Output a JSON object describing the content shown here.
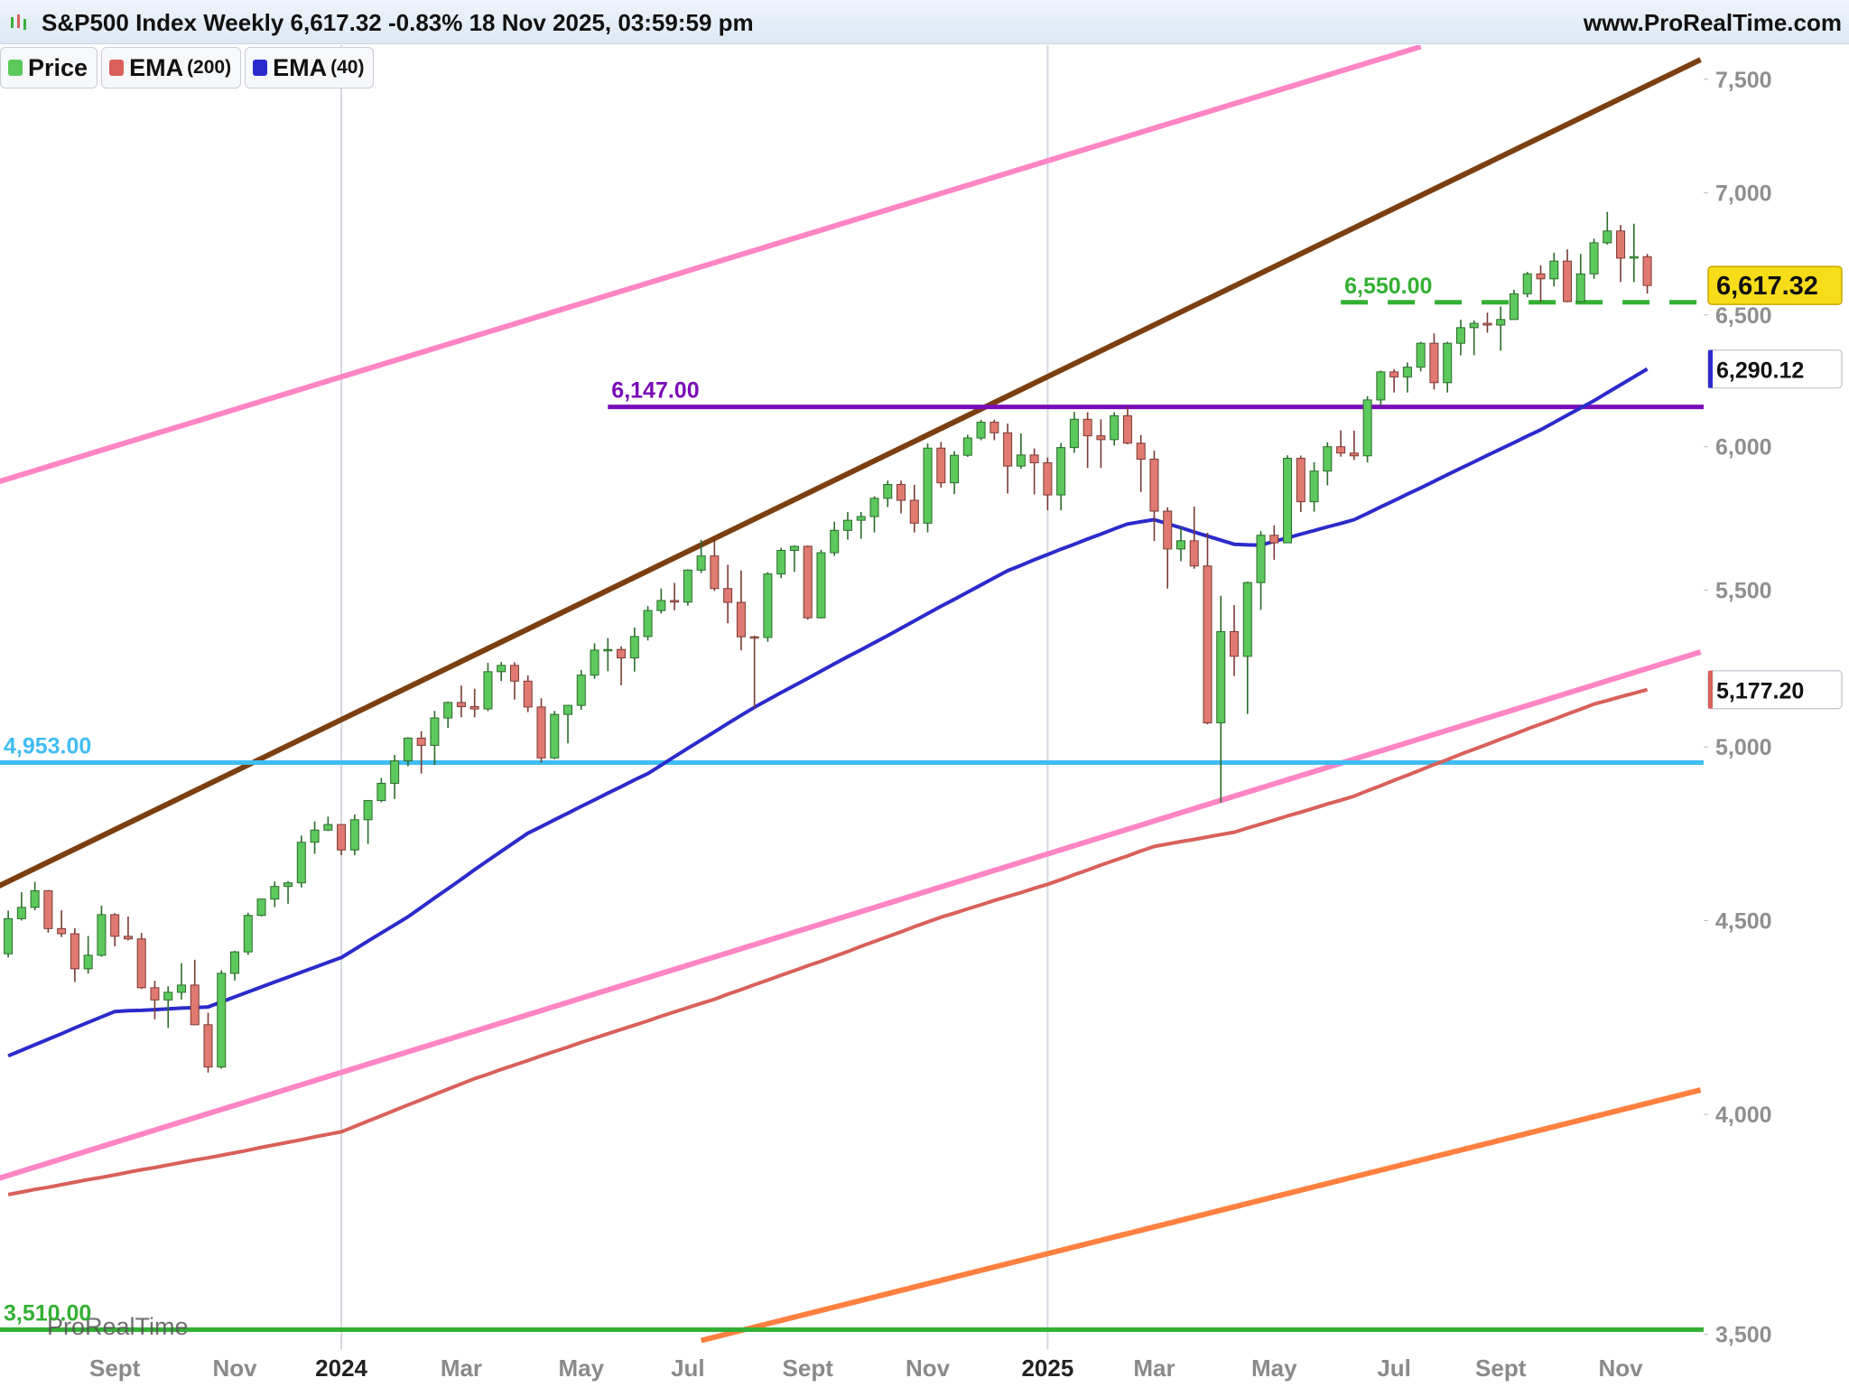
{
  "header": {
    "title": "S&P500 Index Weekly 6,617.32 -0.83% 18 Nov 2025, 03:59:59 pm",
    "site": "www.ProRealTime.com"
  },
  "watermark": "ProRealTime",
  "chart_data": {
    "type": "candlestick",
    "name": "Price",
    "up_color": "#5cc95c",
    "down_color": "#e07a70",
    "log_scale": true,
    "vgrid": true,
    "ylim": [
      3467,
      7657
    ],
    "yticks": [
      {
        "value": 3500,
        "label": "3,500"
      },
      {
        "value": 4000,
        "label": "4,000"
      },
      {
        "value": 4500,
        "label": "4,500"
      },
      {
        "value": 5000,
        "label": "5,000"
      },
      {
        "value": 5500,
        "label": "5,500"
      },
      {
        "value": 6000,
        "label": "6,000"
      },
      {
        "value": 6500,
        "label": "6,500"
      },
      {
        "value": 7000,
        "label": "7,000"
      },
      {
        "value": 7500,
        "label": "7,500"
      }
    ],
    "categories": [
      null,
      null,
      null,
      null,
      null,
      null,
      null,
      null,
      "Sept",
      null,
      null,
      null,
      null,
      null,
      null,
      null,
      null,
      "Nov",
      null,
      null,
      null,
      null,
      null,
      null,
      null,
      "2024",
      null,
      null,
      null,
      null,
      null,
      null,
      null,
      null,
      "Mar",
      null,
      null,
      null,
      null,
      null,
      null,
      null,
      null,
      "May",
      null,
      null,
      null,
      null,
      null,
      null,
      null,
      "Jul",
      null,
      null,
      null,
      null,
      null,
      null,
      null,
      null,
      "Sept",
      null,
      null,
      null,
      null,
      null,
      null,
      null,
      null,
      "Nov",
      null,
      null,
      null,
      null,
      null,
      null,
      null,
      null,
      "2025",
      null,
      null,
      null,
      null,
      null,
      null,
      null,
      "Mar",
      null,
      null,
      null,
      null,
      null,
      null,
      null,
      null,
      "May",
      null,
      null,
      null,
      null,
      null,
      null,
      null,
      null,
      "Jul",
      null,
      null,
      null,
      null,
      null,
      null,
      null,
      "Sept",
      null,
      null,
      null,
      null,
      null,
      null,
      null,
      null,
      "Nov",
      null,
      null
    ],
    "candles": [
      [
        4410,
        4527,
        4400,
        4505
      ],
      [
        4505,
        4578,
        4500,
        4536
      ],
      [
        4536,
        4607,
        4528,
        4582
      ],
      [
        4582,
        4584,
        4467,
        4478
      ],
      [
        4478,
        4528,
        4455,
        4464
      ],
      [
        4464,
        4479,
        4335,
        4370
      ],
      [
        4370,
        4458,
        4357,
        4406
      ],
      [
        4406,
        4541,
        4402,
        4516
      ],
      [
        4516,
        4520,
        4430,
        4457
      ],
      [
        4457,
        4511,
        4446,
        4450
      ],
      [
        4450,
        4466,
        4317,
        4320
      ],
      [
        4320,
        4338,
        4238,
        4288
      ],
      [
        4288,
        4324,
        4216,
        4308
      ],
      [
        4308,
        4385,
        4289,
        4327
      ],
      [
        4327,
        4394,
        4223,
        4224
      ],
      [
        4224,
        4255,
        4103,
        4117
      ],
      [
        4117,
        4366,
        4113,
        4358
      ],
      [
        4358,
        4418,
        4339,
        4415
      ],
      [
        4415,
        4521,
        4407,
        4514
      ],
      [
        4514,
        4560,
        4511,
        4559
      ],
      [
        4559,
        4608,
        4537,
        4594
      ],
      [
        4594,
        4609,
        4546,
        4604
      ],
      [
        4604,
        4738,
        4591,
        4719
      ],
      [
        4719,
        4779,
        4686,
        4754
      ],
      [
        4754,
        4793,
        4751,
        4770
      ],
      [
        4770,
        4771,
        4682,
        4697
      ],
      [
        4697,
        4799,
        4682,
        4784
      ],
      [
        4784,
        4842,
        4714,
        4840
      ],
      [
        4840,
        4907,
        4835,
        4891
      ],
      [
        4891,
        4976,
        4845,
        4958
      ],
      [
        4958,
        5030,
        4942,
        5027
      ],
      [
        5027,
        5048,
        4920,
        5005
      ],
      [
        5005,
        5111,
        4946,
        5089
      ],
      [
        5089,
        5140,
        5058,
        5137
      ],
      [
        5137,
        5190,
        5091,
        5124
      ],
      [
        5124,
        5180,
        5091,
        5117
      ],
      [
        5117,
        5262,
        5110,
        5234
      ],
      [
        5234,
        5265,
        5204,
        5254
      ],
      [
        5254,
        5264,
        5146,
        5204
      ],
      [
        5204,
        5222,
        5107,
        5123
      ],
      [
        5123,
        5150,
        4953,
        4967
      ],
      [
        4967,
        5111,
        4963,
        5100
      ],
      [
        5100,
        5130,
        5011,
        5128
      ],
      [
        5128,
        5239,
        5114,
        5223
      ],
      [
        5223,
        5325,
        5211,
        5303
      ],
      [
        5303,
        5342,
        5235,
        5305
      ],
      [
        5305,
        5315,
        5191,
        5278
      ],
      [
        5278,
        5376,
        5234,
        5347
      ],
      [
        5347,
        5447,
        5334,
        5432
      ],
      [
        5432,
        5505,
        5422,
        5465
      ],
      [
        5465,
        5524,
        5433,
        5460
      ],
      [
        5460,
        5570,
        5448,
        5567
      ],
      [
        5567,
        5670,
        5557,
        5615
      ],
      [
        5615,
        5669,
        5497,
        5505
      ],
      [
        5505,
        5585,
        5390,
        5459
      ],
      [
        5459,
        5566,
        5302,
        5346
      ],
      [
        5346,
        5350,
        5119,
        5344
      ],
      [
        5344,
        5560,
        5330,
        5554
      ],
      [
        5554,
        5643,
        5540,
        5634
      ],
      [
        5634,
        5651,
        5561,
        5648
      ],
      [
        5648,
        5651,
        5402,
        5408
      ],
      [
        5408,
        5636,
        5406,
        5626
      ],
      [
        5626,
        5733,
        5615,
        5703
      ],
      [
        5703,
        5767,
        5671,
        5738
      ],
      [
        5738,
        5767,
        5674,
        5751
      ],
      [
        5751,
        5822,
        5696,
        5815
      ],
      [
        5815,
        5878,
        5784,
        5864
      ],
      [
        5864,
        5878,
        5762,
        5808
      ],
      [
        5808,
        5863,
        5696,
        5728
      ],
      [
        5728,
        6012,
        5696,
        5995
      ],
      [
        5995,
        6017,
        5853,
        5870
      ],
      [
        5870,
        5984,
        5830,
        5969
      ],
      [
        5969,
        6044,
        5963,
        6032
      ],
      [
        6032,
        6099,
        6024,
        6090
      ],
      [
        6090,
        6099,
        6024,
        6051
      ],
      [
        6051,
        6085,
        5832,
        5930
      ],
      [
        5930,
        6049,
        5920,
        5970
      ],
      [
        5970,
        5994,
        5829,
        5942
      ],
      [
        5942,
        5961,
        5773,
        5827
      ],
      [
        5827,
        6014,
        5773,
        5997
      ],
      [
        5997,
        6128,
        5978,
        6101
      ],
      [
        6101,
        6127,
        5923,
        6040
      ],
      [
        6040,
        6101,
        5923,
        6026
      ],
      [
        6026,
        6127,
        6004,
        6114
      ],
      [
        6114,
        6147,
        6009,
        6013
      ],
      [
        6013,
        6043,
        5837,
        5955
      ],
      [
        5955,
        5986,
        5666,
        5770
      ],
      [
        5770,
        5783,
        5505,
        5639
      ],
      [
        5639,
        5715,
        5597,
        5667
      ],
      [
        5667,
        5786,
        5572,
        5581
      ],
      [
        5581,
        5695,
        5069,
        5074
      ],
      [
        5074,
        5481,
        4835,
        5363
      ],
      [
        5363,
        5450,
        5220,
        5283
      ],
      [
        5283,
        5528,
        5101,
        5525
      ],
      [
        5525,
        5700,
        5434,
        5686
      ],
      [
        5686,
        5720,
        5602,
        5660
      ],
      [
        5660,
        5969,
        5660,
        5958
      ],
      [
        5958,
        5968,
        5767,
        5803
      ],
      [
        5803,
        5944,
        5768,
        5912
      ],
      [
        5912,
        6016,
        5861,
        6000
      ],
      [
        6000,
        6060,
        5964,
        5977
      ],
      [
        5977,
        6059,
        5952,
        5967
      ],
      [
        5967,
        6187,
        5943,
        6173
      ],
      [
        6173,
        6284,
        6150,
        6279
      ],
      [
        6279,
        6290,
        6201,
        6260
      ],
      [
        6260,
        6315,
        6201,
        6297
      ],
      [
        6297,
        6395,
        6281,
        6389
      ],
      [
        6389,
        6427,
        6212,
        6238
      ],
      [
        6238,
        6395,
        6201,
        6389
      ],
      [
        6389,
        6481,
        6342,
        6450
      ],
      [
        6450,
        6478,
        6343,
        6467
      ],
      [
        6467,
        6509,
        6430,
        6460
      ],
      [
        6460,
        6533,
        6360,
        6482
      ],
      [
        6482,
        6600,
        6481,
        6584
      ],
      [
        6584,
        6672,
        6570,
        6664
      ],
      [
        6664,
        6699,
        6551,
        6644
      ],
      [
        6644,
        6750,
        6614,
        6716
      ],
      [
        6716,
        6764,
        6550,
        6553
      ],
      [
        6553,
        6745,
        6551,
        6664
      ],
      [
        6664,
        6808,
        6644,
        6791
      ],
      [
        6791,
        6920,
        6784,
        6840
      ],
      [
        6840,
        6865,
        6631,
        6728
      ],
      [
        6728,
        6870,
        6631,
        6734
      ],
      [
        6734,
        6745,
        6585,
        6617.32
      ]
    ],
    "series": [
      {
        "name": "EMA",
        "period": "(200)",
        "color": "#d9605a",
        "values": [
          3810,
          3816,
          3822,
          3827,
          3833,
          3839,
          3845,
          3850,
          3856,
          3862,
          3868,
          3873,
          3879,
          3885,
          3891,
          3896,
          3902,
          3908,
          3914,
          3921,
          3927,
          3933,
          3939,
          3946,
          3952,
          3958,
          3971,
          3984,
          3997,
          4010,
          4023,
          4036,
          4049,
          4062,
          4075,
          4088,
          4099,
          4111,
          4122,
          4133,
          4145,
          4156,
          4167,
          4179,
          4190,
          4201,
          4212,
          4223,
          4234,
          4246,
          4257,
          4268,
          4279,
          4290,
          4303,
          4315,
          4328,
          4340,
          4353,
          4365,
          4378,
          4390,
          4403,
          4416,
          4430,
          4443,
          4456,
          4469,
          4483,
          4496,
          4509,
          4520,
          4532,
          4543,
          4555,
          4566,
          4577,
          4589,
          4600,
          4613,
          4627,
          4640,
          4654,
          4667,
          4680,
          4694,
          4707,
          4714,
          4721,
          4727,
          4734,
          4741,
          4748,
          4760,
          4771,
          4783,
          4795,
          4806,
          4818,
          4830,
          4841,
          4853,
          4869,
          4884,
          4900,
          4915,
          4931,
          4947,
          4962,
          4978,
          4993,
          5008,
          5024,
          5039,
          5055,
          5070,
          5085,
          5101,
          5116,
          5132,
          5143,
          5155,
          5166,
          5177.2
        ]
      },
      {
        "name": "EMA",
        "period": "(40)",
        "color": "#2b2bcc",
        "values": [
          4145,
          4159,
          4173,
          4187,
          4201,
          4216,
          4230,
          4244,
          4258,
          4260,
          4261,
          4263,
          4265,
          4267,
          4268,
          4270,
          4283,
          4296,
          4309,
          4322,
          4335,
          4348,
          4361,
          4374,
          4387,
          4400,
          4422,
          4444,
          4466,
          4488,
          4510,
          4536,
          4562,
          4588,
          4614,
          4641,
          4667,
          4693,
          4719,
          4745,
          4764,
          4784,
          4803,
          4823,
          4842,
          4862,
          4881,
          4901,
          4920,
          4945,
          4971,
          4996,
          5021,
          5046,
          5072,
          5097,
          5122,
          5145,
          5168,
          5190,
          5213,
          5236,
          5259,
          5282,
          5304,
          5327,
          5350,
          5374,
          5398,
          5422,
          5446,
          5469,
          5493,
          5517,
          5541,
          5565,
          5583,
          5602,
          5620,
          5638,
          5655,
          5673,
          5690,
          5708,
          5725,
          5733,
          5740,
          5726,
          5712,
          5697,
          5683,
          5669,
          5655,
          5653,
          5652,
          5665,
          5677,
          5690,
          5702,
          5715,
          5727,
          5740,
          5762,
          5785,
          5807,
          5830,
          5852,
          5875,
          5899,
          5922,
          5945,
          5969,
          5992,
          6015,
          6039,
          6062,
          6089,
          6116,
          6143,
          6170,
          6200,
          6230,
          6260,
          6290.12
        ]
      }
    ],
    "trendlines": [
      {
        "color": "#ff85c4",
        "points": [
          [
            -1,
            5870
          ],
          [
            106,
            7650
          ]
        ]
      },
      {
        "color": "#7b3f10",
        "points": [
          [
            -1,
            4590
          ],
          [
            127,
            7590
          ]
        ]
      },
      {
        "color": "#ff85c4",
        "points": [
          [
            -1,
            3845
          ],
          [
            127,
            5297
          ]
        ]
      },
      {
        "color": "#ff8040",
        "points": [
          [
            52,
            3487
          ],
          [
            127,
            4060
          ]
        ]
      }
    ],
    "levels": [
      {
        "value": 6147,
        "label": "6,147.00",
        "color": "#7a0cb8",
        "from": 45,
        "dashed": false
      },
      {
        "value": 4953,
        "label": "4,953.00",
        "color": "#40bdf2",
        "from": -1,
        "dashed": false
      },
      {
        "value": 3510,
        "label": "3,510.00",
        "color": "#33b033",
        "from": -1,
        "dashed": false
      },
      {
        "value": 6550,
        "label": "6,550.00",
        "color": "#33b033",
        "from": 100,
        "dashed": true
      }
    ],
    "last_labels": [
      {
        "value": 6617.32,
        "label": "6,617.32",
        "color": "#f7dc1a",
        "filled": true
      },
      {
        "value": 6290.12,
        "label": "6,290.12",
        "color": "#2b2bcc",
        "filled": false
      },
      {
        "value": 5177.2,
        "label": "5,177.20",
        "color": "#d9605a",
        "filled": false
      }
    ]
  }
}
